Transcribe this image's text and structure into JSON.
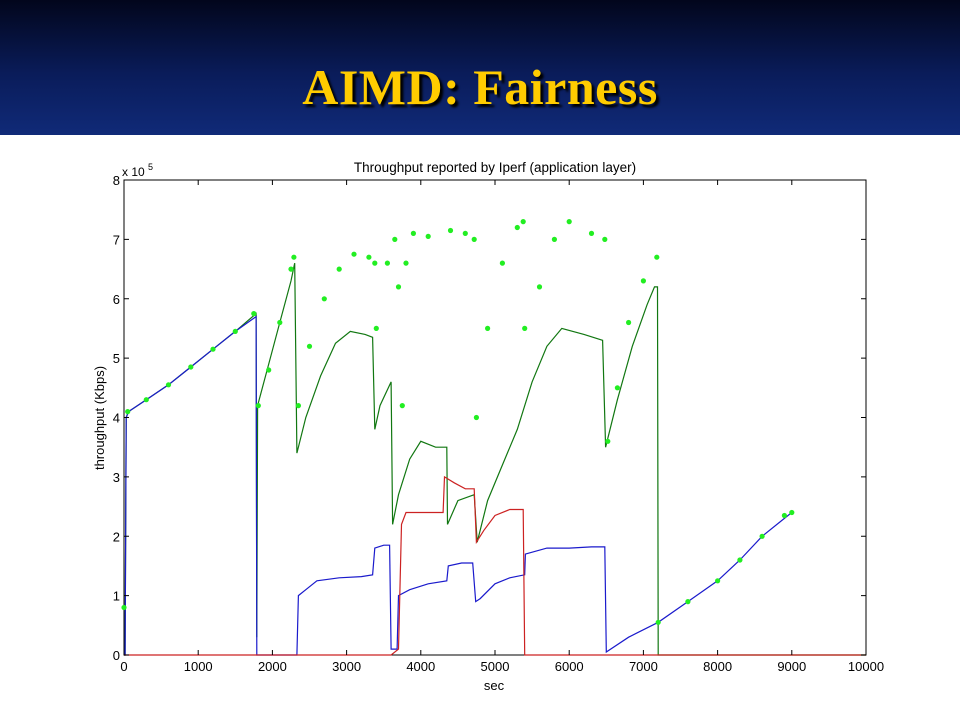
{
  "slide": {
    "title": "AIMD: Fairness"
  },
  "colors": {
    "header_dark": "#02061c",
    "header_light": "#102a78",
    "title": "#ffcc00",
    "bright_green": "#22ee22",
    "dark_green": "#117711",
    "blue": "#1a1acc",
    "red": "#cc2222"
  },
  "chart_data": {
    "type": "line",
    "title": "Throughput reported by Iperf (application layer)",
    "xlabel": "sec",
    "ylabel": "throughput (Kbps)",
    "y_multiplier_label": "x 10",
    "y_multiplier_exponent": "5",
    "xlim": [
      0,
      10000
    ],
    "ylim": [
      0,
      8
    ],
    "xticks": [
      "0",
      "1000",
      "2000",
      "3000",
      "4000",
      "5000",
      "6000",
      "7000",
      "8000",
      "9000",
      "10000"
    ],
    "yticks": [
      "0",
      "1",
      "2",
      "3",
      "4",
      "5",
      "6",
      "7",
      "8"
    ],
    "grid": false,
    "series": [
      {
        "color": "#22ee22",
        "style": "points",
        "points": [
          [
            0,
            0.8
          ],
          [
            50,
            4.1
          ],
          [
            300,
            4.3
          ],
          [
            600,
            4.55
          ],
          [
            900,
            4.85
          ],
          [
            1200,
            5.15
          ],
          [
            1500,
            5.45
          ],
          [
            1750,
            5.75
          ],
          [
            1810,
            4.2
          ],
          [
            1950,
            4.8
          ],
          [
            2100,
            5.6
          ],
          [
            2250,
            6.5
          ],
          [
            2290,
            6.7
          ],
          [
            2350,
            4.2
          ],
          [
            2500,
            5.2
          ],
          [
            2700,
            6.0
          ],
          [
            2900,
            6.5
          ],
          [
            3100,
            6.75
          ],
          [
            3300,
            6.7
          ],
          [
            3380,
            6.6
          ],
          [
            3400,
            5.5
          ],
          [
            3550,
            6.6
          ],
          [
            3650,
            7.0
          ],
          [
            3700,
            6.2
          ],
          [
            3750,
            4.2
          ],
          [
            3800,
            6.6
          ],
          [
            3900,
            7.1
          ],
          [
            4100,
            7.05
          ],
          [
            4400,
            7.15
          ],
          [
            4600,
            7.1
          ],
          [
            4720,
            7.0
          ],
          [
            4750,
            4.0
          ],
          [
            4900,
            5.5
          ],
          [
            5100,
            6.6
          ],
          [
            5300,
            7.2
          ],
          [
            5380,
            7.3
          ],
          [
            5400,
            5.5
          ],
          [
            5600,
            6.2
          ],
          [
            5800,
            7.0
          ],
          [
            6000,
            7.3
          ],
          [
            6300,
            7.1
          ],
          [
            6480,
            7.0
          ],
          [
            6520,
            3.6
          ],
          [
            6650,
            4.5
          ],
          [
            6800,
            5.6
          ],
          [
            7000,
            6.3
          ],
          [
            7180,
            6.7
          ],
          [
            7200,
            0.55
          ],
          [
            7600,
            0.9
          ],
          [
            8000,
            1.25
          ],
          [
            8300,
            1.6
          ],
          [
            8600,
            2.0
          ],
          [
            8900,
            2.35
          ],
          [
            9000,
            2.4
          ]
        ]
      },
      {
        "color": "#117711",
        "style": "line",
        "points": [
          [
            0,
            0
          ],
          [
            15,
            0
          ],
          [
            30,
            4.0
          ],
          [
            60,
            4.1
          ],
          [
            300,
            4.3
          ],
          [
            600,
            4.55
          ],
          [
            900,
            4.85
          ],
          [
            1200,
            5.15
          ],
          [
            1500,
            5.45
          ],
          [
            1780,
            5.75
          ],
          [
            1790,
            0.3
          ],
          [
            1800,
            4.2
          ],
          [
            1950,
            4.9
          ],
          [
            2100,
            5.6
          ],
          [
            2250,
            6.3
          ],
          [
            2300,
            6.6
          ],
          [
            2330,
            3.4
          ],
          [
            2450,
            4.0
          ],
          [
            2650,
            4.7
          ],
          [
            2850,
            5.25
          ],
          [
            3050,
            5.45
          ],
          [
            3250,
            5.4
          ],
          [
            3350,
            5.35
          ],
          [
            3380,
            3.8
          ],
          [
            3450,
            4.2
          ],
          [
            3600,
            4.6
          ],
          [
            3620,
            2.2
          ],
          [
            3700,
            2.7
          ],
          [
            3850,
            3.3
          ],
          [
            4000,
            3.6
          ],
          [
            4200,
            3.5
          ],
          [
            4350,
            3.5
          ],
          [
            4360,
            2.2
          ],
          [
            4500,
            2.6
          ],
          [
            4720,
            2.7
          ],
          [
            4760,
            1.9
          ],
          [
            4900,
            2.6
          ],
          [
            5100,
            3.2
          ],
          [
            5300,
            3.8
          ],
          [
            5500,
            4.6
          ],
          [
            5700,
            5.2
          ],
          [
            5900,
            5.5
          ],
          [
            6200,
            5.4
          ],
          [
            6450,
            5.3
          ],
          [
            6490,
            3.5
          ],
          [
            6650,
            4.3
          ],
          [
            6850,
            5.2
          ],
          [
            7050,
            5.9
          ],
          [
            7150,
            6.2
          ],
          [
            7190,
            6.2
          ],
          [
            7200,
            0
          ],
          [
            10000,
            0
          ]
        ]
      },
      {
        "color": "#1a1acc",
        "style": "line",
        "points": [
          [
            0,
            0
          ],
          [
            15,
            0
          ],
          [
            30,
            4.0
          ],
          [
            60,
            4.1
          ],
          [
            300,
            4.3
          ],
          [
            600,
            4.55
          ],
          [
            900,
            4.85
          ],
          [
            1200,
            5.15
          ],
          [
            1500,
            5.45
          ],
          [
            1780,
            5.7
          ],
          [
            1790,
            0
          ],
          [
            2330,
            0
          ],
          [
            2350,
            1.0
          ],
          [
            2450,
            1.1
          ],
          [
            2600,
            1.25
          ],
          [
            2900,
            1.3
          ],
          [
            3200,
            1.32
          ],
          [
            3350,
            1.35
          ],
          [
            3380,
            1.8
          ],
          [
            3500,
            1.85
          ],
          [
            3580,
            1.85
          ],
          [
            3600,
            0.1
          ],
          [
            3680,
            0.1
          ],
          [
            3700,
            1.0
          ],
          [
            3850,
            1.1
          ],
          [
            4100,
            1.2
          ],
          [
            4350,
            1.25
          ],
          [
            4370,
            1.5
          ],
          [
            4550,
            1.55
          ],
          [
            4700,
            1.55
          ],
          [
            4740,
            0.9
          ],
          [
            4800,
            0.95
          ],
          [
            5000,
            1.2
          ],
          [
            5200,
            1.3
          ],
          [
            5400,
            1.35
          ],
          [
            5410,
            1.7
          ],
          [
            5700,
            1.8
          ],
          [
            6000,
            1.8
          ],
          [
            6300,
            1.82
          ],
          [
            6480,
            1.82
          ],
          [
            6500,
            0.05
          ],
          [
            6800,
            0.3
          ],
          [
            7200,
            0.55
          ],
          [
            7600,
            0.9
          ],
          [
            8000,
            1.25
          ],
          [
            8300,
            1.6
          ],
          [
            8600,
            2.0
          ],
          [
            8900,
            2.3
          ],
          [
            9000,
            2.4
          ]
        ]
      },
      {
        "color": "#cc2222",
        "style": "line",
        "points": [
          [
            0,
            0
          ],
          [
            3600,
            0
          ],
          [
            3700,
            0.1
          ],
          [
            3740,
            2.2
          ],
          [
            3800,
            2.4
          ],
          [
            4000,
            2.4
          ],
          [
            4250,
            2.4
          ],
          [
            4300,
            2.4
          ],
          [
            4320,
            3.0
          ],
          [
            4450,
            2.9
          ],
          [
            4600,
            2.8
          ],
          [
            4720,
            2.8
          ],
          [
            4750,
            1.9
          ],
          [
            4850,
            2.1
          ],
          [
            5000,
            2.35
          ],
          [
            5200,
            2.45
          ],
          [
            5380,
            2.45
          ],
          [
            5400,
            0
          ],
          [
            10000,
            0
          ]
        ]
      }
    ]
  }
}
